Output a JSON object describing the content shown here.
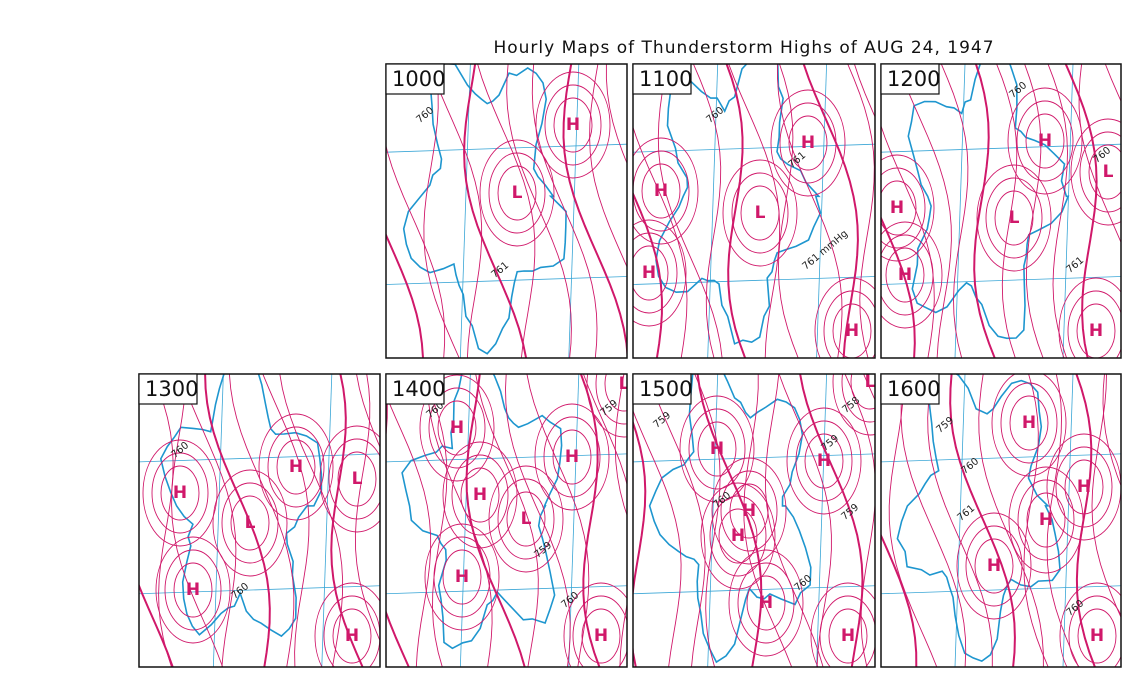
{
  "title": "Hourly Maps of Thunderstorm Highs of AUG 24, 1947",
  "panels": [
    {
      "time": "1000",
      "labels": [
        "H",
        "L",
        "760",
        "761"
      ]
    },
    {
      "time": "1100",
      "labels": [
        "H",
        "L",
        "H",
        "H",
        "H",
        "760",
        "761",
        "761 mmHg"
      ]
    },
    {
      "time": "1200",
      "labels": [
        "H",
        "L",
        "H",
        "H",
        "L",
        "H",
        "760",
        "760",
        "761"
      ]
    },
    {
      "time": "1300",
      "labels": [
        "H",
        "L",
        "H",
        "L",
        "H",
        "H",
        "760",
        "760"
      ]
    },
    {
      "time": "1400",
      "labels": [
        "H",
        "H",
        "L",
        "H",
        "L",
        "H",
        "H",
        "760",
        "759",
        "759",
        "760"
      ]
    },
    {
      "time": "1500",
      "labels": [
        "H",
        "H",
        "L",
        "H",
        "H",
        "H",
        "H",
        "759",
        "758",
        "759",
        "759",
        "760",
        "760"
      ]
    },
    {
      "time": "1600",
      "labels": [
        "H",
        "H",
        "H",
        "H",
        "H",
        "759",
        "760",
        "761",
        "760"
      ]
    }
  ]
}
